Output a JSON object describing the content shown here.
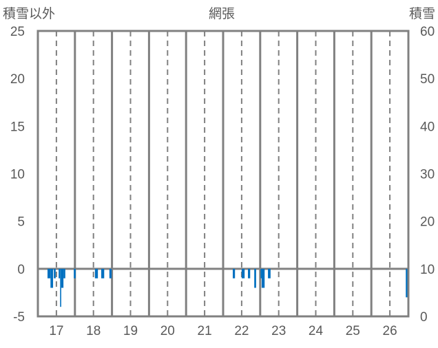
{
  "chart_data": {
    "type": "bar",
    "title": "網張",
    "ylabel_left": "積雪以外",
    "ylabel_right": "積雪",
    "xlim": [
      16.5,
      26.5
    ],
    "ylim_left": [
      -5,
      25
    ],
    "ylim_right": [
      0,
      60
    ],
    "x_ticks": [
      "17",
      "18",
      "19",
      "20",
      "21",
      "22",
      "23",
      "24",
      "25",
      "26"
    ],
    "y_ticks_left": [
      "25",
      "20",
      "15",
      "10",
      "5",
      "0",
      "-5"
    ],
    "y_ticks_right": [
      "60",
      "50",
      "40",
      "30",
      "20",
      "10",
      "0"
    ],
    "grid": true,
    "bar_color": "#0070C0",
    "series": [
      {
        "name": "積雪以外",
        "bars": [
          [
            16.76,
            16.84,
            -1
          ],
          [
            16.84,
            16.91,
            -2
          ],
          [
            16.93,
            16.98,
            -1
          ],
          [
            17.06,
            17.1,
            -1
          ],
          [
            17.1,
            17.13,
            -4
          ],
          [
            17.13,
            17.19,
            -2
          ],
          [
            17.19,
            17.24,
            -1
          ],
          [
            17.47,
            17.52,
            -1
          ],
          [
            18.04,
            18.12,
            -1
          ],
          [
            18.21,
            18.29,
            -1
          ],
          [
            18.43,
            18.49,
            -1
          ],
          [
            21.76,
            21.82,
            -1
          ],
          [
            22.0,
            22.08,
            -1
          ],
          [
            22.17,
            22.23,
            -1
          ],
          [
            22.34,
            22.39,
            -2
          ],
          [
            22.51,
            22.54,
            -1
          ],
          [
            22.54,
            22.62,
            -2
          ],
          [
            22.71,
            22.78,
            -1
          ],
          [
            26.43,
            26.48,
            -3
          ]
        ]
      },
      {
        "name": "積雪",
        "bars": []
      }
    ]
  }
}
